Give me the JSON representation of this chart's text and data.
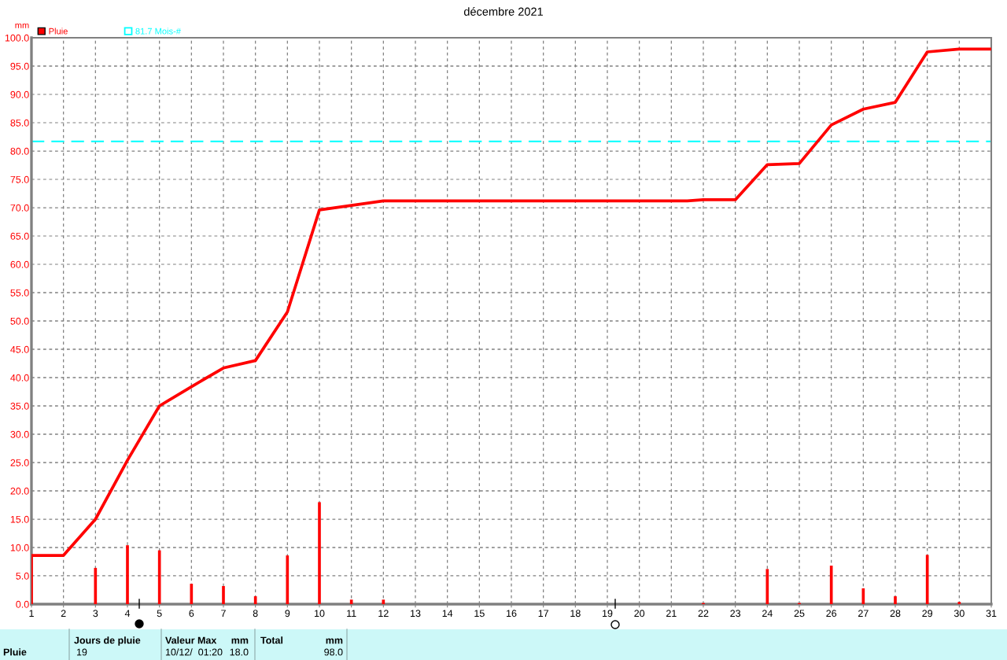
{
  "chart_data": {
    "type": "bar",
    "title": "décembre 2021",
    "ylabel": "mm",
    "xlim": [
      1,
      31
    ],
    "xticks": [
      1,
      2,
      3,
      4,
      5,
      6,
      7,
      8,
      9,
      10,
      11,
      12,
      13,
      14,
      15,
      16,
      17,
      18,
      19,
      20,
      21,
      22,
      23,
      24,
      25,
      26,
      27,
      28,
      29,
      30,
      31
    ],
    "ylim": [
      0,
      100
    ],
    "yticks": [
      {
        "value": 0,
        "label": "0.0"
      },
      {
        "value": 5,
        "label": "5.0"
      },
      {
        "value": 10,
        "label": "10.0"
      },
      {
        "value": 15,
        "label": "15.0"
      },
      {
        "value": 20,
        "label": "20.0"
      },
      {
        "value": 25,
        "label": "25.0"
      },
      {
        "value": 30,
        "label": "30.0"
      },
      {
        "value": 35,
        "label": "35.0"
      },
      {
        "value": 40,
        "label": "40.0"
      },
      {
        "value": 45,
        "label": "45.0"
      },
      {
        "value": 50,
        "label": "50.0"
      },
      {
        "value": 55,
        "label": "55.0"
      },
      {
        "value": 60,
        "label": "60.0"
      },
      {
        "value": 65,
        "label": "65.0"
      },
      {
        "value": 70,
        "label": "70.0"
      },
      {
        "value": 75,
        "label": "75.0"
      },
      {
        "value": 80,
        "label": "80.0"
      },
      {
        "value": 85,
        "label": "85.0"
      },
      {
        "value": 90,
        "label": "90.0"
      },
      {
        "value": 95,
        "label": "95.0"
      },
      {
        "value": 100,
        "label": "100.0"
      }
    ],
    "grid": true,
    "legend": "top left",
    "series": [
      {
        "name": "Pluie",
        "color": "#ff0000",
        "x": [
          1,
          3,
          4,
          5,
          6,
          7,
          8,
          9,
          10,
          11,
          12,
          22,
          24,
          25,
          26,
          27,
          28,
          29,
          30
        ],
        "values": [
          8.6,
          6.4,
          10.4,
          9.5,
          3.6,
          3.2,
          1.4,
          8.6,
          18.0,
          0.8,
          0.8,
          0.2,
          6.2,
          0.2,
          6.8,
          2.8,
          1.4,
          8.7,
          0.4
        ]
      },
      {
        "type": "line",
        "color": "#ff0000",
        "x": [
          1,
          2,
          3,
          4,
          5,
          6,
          7,
          8,
          9,
          10,
          11,
          12,
          21.5,
          22,
          23,
          24,
          25,
          26,
          27,
          28,
          29,
          30,
          31
        ],
        "values": [
          8.6,
          8.6,
          15.0,
          25.4,
          35.0,
          38.4,
          41.7,
          43.0,
          51.6,
          69.6,
          70.4,
          71.2,
          71.2,
          71.4,
          71.4,
          77.6,
          77.8,
          84.6,
          87.4,
          88.6,
          97.5,
          98.0,
          98.0
        ]
      }
    ],
    "ref_lines": [
      {
        "axis": "y",
        "value": 81.7,
        "label": "81.7 Mois-#",
        "color": "#00ffff",
        "line_style": "dashed"
      }
    ],
    "annotations": [
      "Pluie",
      "Jours de pluie",
      "19",
      "Valeur Max",
      "mm",
      "10/12/  01:20",
      "18.0",
      "Total",
      "mm",
      "98.0"
    ]
  }
}
